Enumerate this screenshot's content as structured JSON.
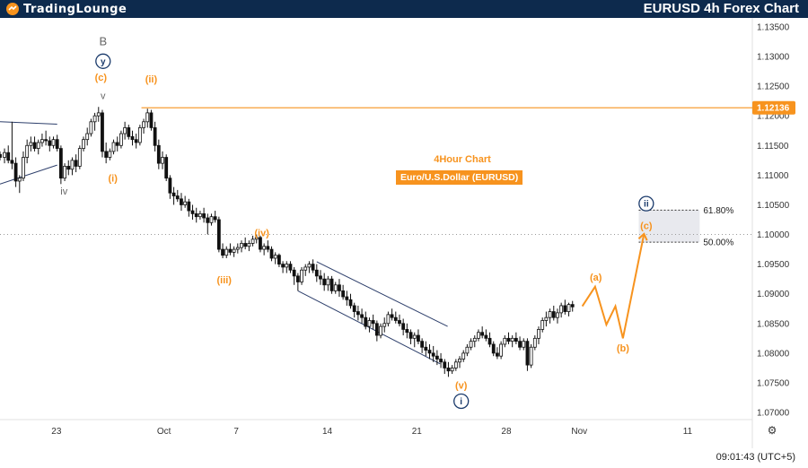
{
  "header": {
    "logo_text": "TradingLounge",
    "title": "EURUSD 4h Forex Chart"
  },
  "info": {
    "chart_label": "4Hour Chart",
    "instrument_label": "Euro/U.S.Dollar (EURUSD)"
  },
  "time_readout": "09:01:43 (UTC+5)",
  "chart_data": {
    "type": "candlestick",
    "title": "EURUSD 4h Forex Chart",
    "y_ticks": [
      1.07,
      1.075,
      1.08,
      1.085,
      1.09,
      1.095,
      1.1,
      1.105,
      1.11,
      1.115,
      1.12,
      1.125,
      1.13,
      1.135
    ],
    "y_tick_labels": [
      "1.07000",
      "1.07500",
      "1.08000",
      "1.08500",
      "1.09000",
      "1.09500",
      "1.10000",
      "1.10500",
      "1.11000",
      "1.11500",
      "1.12000",
      "1.12500",
      "1.13000",
      "1.13500"
    ],
    "ylim": [
      1.0688,
      1.1365
    ],
    "x_labels": [
      "23",
      "Oct",
      "7",
      "14",
      "21",
      "28",
      "Nov",
      "11"
    ],
    "current_price": "1.12136",
    "current_price_value": 1.12136,
    "dotted_level": 1.1,
    "fib_levels": [
      {
        "label": "61.80%",
        "value": 1.1041
      },
      {
        "label": "50.00%",
        "value": 1.0987
      }
    ],
    "wave_labels": [
      {
        "text": "B",
        "style": "gray",
        "x": 13.7,
        "y": 1.1325
      },
      {
        "text": "y",
        "style": "navy-circle",
        "x": 13.7,
        "y": 1.1292
      },
      {
        "text": "v",
        "style": "gray",
        "x": 13.7,
        "y": 1.1234
      },
      {
        "text": "(c)",
        "style": "orange",
        "x": 13.4,
        "y": 1.1265
      },
      {
        "text": "(ii)",
        "style": "orange",
        "x": 20.1,
        "y": 1.1262
      },
      {
        "text": "(i)",
        "style": "orange",
        "x": 15.0,
        "y": 1.1095
      },
      {
        "text": "iv",
        "style": "gray",
        "x": 8.5,
        "y": 1.1073
      },
      {
        "text": "(iii)",
        "style": "orange",
        "x": 29.8,
        "y": 1.0924
      },
      {
        "text": "(iv)",
        "style": "orange",
        "x": 34.8,
        "y": 1.1003
      },
      {
        "text": "(v)",
        "style": "orange",
        "x": 61.3,
        "y": 1.0746
      },
      {
        "text": "i",
        "style": "navy-circle",
        "x": 61.3,
        "y": 1.0719
      },
      {
        "text": "(a)",
        "style": "orange",
        "x": 79.2,
        "y": 1.0928
      },
      {
        "text": "(b)",
        "style": "orange",
        "x": 82.8,
        "y": 1.0809
      },
      {
        "text": "(c)",
        "style": "orange",
        "x": 85.9,
        "y": 1.1015
      },
      {
        "text": "ii",
        "style": "navy-circle",
        "x": 85.9,
        "y": 1.1052
      }
    ],
    "projection_path": [
      [
        77.4,
        1.0879
      ],
      [
        79.1,
        1.0912
      ],
      [
        80.6,
        1.0848
      ],
      [
        81.8,
        1.0879
      ],
      [
        82.8,
        1.0825
      ],
      [
        85.6,
        1.1001
      ]
    ],
    "channels": [
      {
        "from": [
          42.1,
          1.0954
        ],
        "to": [
          59.5,
          1.0845
        ]
      },
      {
        "from": [
          39.6,
          1.0905
        ],
        "to": [
          58.5,
          1.0782
        ]
      },
      {
        "from": [
          0.0,
          1.1085
        ],
        "to": [
          7.6,
          1.1117
        ]
      },
      {
        "from": [
          0.0,
          1.119
        ],
        "to": [
          7.6,
          1.1186
        ]
      }
    ],
    "x_label_positions": [
      7.5,
      21.8,
      31.4,
      43.5,
      55.4,
      67.3,
      77.0,
      91.4
    ],
    "candles": [
      [
        0.0,
        1.1135,
        1.114,
        1.1125,
        1.113
      ],
      [
        0.6,
        1.113,
        1.1145,
        1.112,
        1.1138
      ],
      [
        1.1,
        1.1138,
        1.115,
        1.112,
        1.1125
      ],
      [
        1.6,
        1.1125,
        1.119,
        1.111,
        1.112
      ],
      [
        2.1,
        1.112,
        1.113,
        1.108,
        1.109
      ],
      [
        2.6,
        1.109,
        1.11,
        1.107,
        1.1095
      ],
      [
        3.1,
        1.1095,
        1.114,
        1.109,
        1.113
      ],
      [
        3.6,
        1.113,
        1.116,
        1.112,
        1.115
      ],
      [
        4.1,
        1.115,
        1.1165,
        1.114,
        1.1155
      ],
      [
        4.6,
        1.1155,
        1.1165,
        1.114,
        1.1145
      ],
      [
        5.1,
        1.1145,
        1.116,
        1.1135,
        1.1155
      ],
      [
        5.6,
        1.1155,
        1.117,
        1.1148,
        1.116
      ],
      [
        6.1,
        1.116,
        1.1175,
        1.115,
        1.1158
      ],
      [
        6.6,
        1.1158,
        1.1165,
        1.114,
        1.115
      ],
      [
        7.1,
        1.115,
        1.1165,
        1.1145,
        1.116
      ],
      [
        7.6,
        1.116,
        1.1168,
        1.114,
        1.1145
      ],
      [
        8.1,
        1.1145,
        1.115,
        1.1085,
        1.1095
      ],
      [
        8.6,
        1.1095,
        1.112,
        1.109,
        1.1115
      ],
      [
        9.1,
        1.1115,
        1.1125,
        1.11,
        1.111
      ],
      [
        9.6,
        1.111,
        1.113,
        1.11,
        1.1125
      ],
      [
        10.1,
        1.1125,
        1.1135,
        1.1105,
        1.1115
      ],
      [
        10.6,
        1.1115,
        1.115,
        1.111,
        1.1145
      ],
      [
        11.1,
        1.1145,
        1.1165,
        1.114,
        1.116
      ],
      [
        11.6,
        1.116,
        1.118,
        1.115,
        1.117
      ],
      [
        12.1,
        1.117,
        1.1195,
        1.1165,
        1.119
      ],
      [
        12.6,
        1.119,
        1.1205,
        1.1175,
        1.12
      ],
      [
        13.1,
        1.12,
        1.1215,
        1.119,
        1.1205
      ],
      [
        13.6,
        1.1205,
        1.121,
        1.113,
        1.114
      ],
      [
        14.1,
        1.114,
        1.1155,
        1.112,
        1.113
      ],
      [
        14.6,
        1.113,
        1.1145,
        1.1125,
        1.114
      ],
      [
        15.1,
        1.114,
        1.116,
        1.1135,
        1.1155
      ],
      [
        15.6,
        1.1155,
        1.1165,
        1.114,
        1.115
      ],
      [
        16.1,
        1.115,
        1.1175,
        1.1145,
        1.117
      ],
      [
        16.6,
        1.117,
        1.119,
        1.116,
        1.118
      ],
      [
        17.1,
        1.118,
        1.1185,
        1.116,
        1.1165
      ],
      [
        17.6,
        1.1165,
        1.1175,
        1.115,
        1.116
      ],
      [
        18.1,
        1.116,
        1.117,
        1.1145,
        1.1155
      ],
      [
        18.6,
        1.1155,
        1.1185,
        1.115,
        1.118
      ],
      [
        19.1,
        1.118,
        1.1195,
        1.117,
        1.119
      ],
      [
        19.6,
        1.119,
        1.1212,
        1.118,
        1.1205
      ],
      [
        20.1,
        1.1205,
        1.121,
        1.1175,
        1.118
      ],
      [
        20.6,
        1.118,
        1.119,
        1.114,
        1.115
      ],
      [
        21.1,
        1.115,
        1.116,
        1.111,
        1.112
      ],
      [
        21.6,
        1.112,
        1.114,
        1.111,
        1.113
      ],
      [
        22.1,
        1.113,
        1.1135,
        1.109,
        1.1095
      ],
      [
        22.6,
        1.1095,
        1.11,
        1.106,
        1.107
      ],
      [
        23.1,
        1.107,
        1.108,
        1.105,
        1.1065
      ],
      [
        23.6,
        1.1065,
        1.1075,
        1.1055,
        1.106
      ],
      [
        24.1,
        1.106,
        1.107,
        1.104,
        1.105
      ],
      [
        24.6,
        1.105,
        1.1065,
        1.1045,
        1.1055
      ],
      [
        25.1,
        1.1055,
        1.106,
        1.103,
        1.104
      ],
      [
        25.6,
        1.104,
        1.105,
        1.1025,
        1.1035
      ],
      [
        26.1,
        1.1035,
        1.1045,
        1.102,
        1.103
      ],
      [
        26.6,
        1.103,
        1.104,
        1.1025,
        1.1035
      ],
      [
        27.1,
        1.1035,
        1.1045,
        1.102,
        1.1028
      ],
      [
        27.6,
        1.1028,
        1.1035,
        1.1,
        1.102
      ],
      [
        28.1,
        1.102,
        1.1035,
        1.1015,
        1.103
      ],
      [
        28.6,
        1.103,
        1.104,
        1.102,
        1.1025
      ],
      [
        29.1,
        1.1025,
        1.103,
        1.097,
        1.0975
      ],
      [
        29.6,
        1.0975,
        1.0985,
        1.096,
        1.0965
      ],
      [
        30.1,
        1.0965,
        1.098,
        1.096,
        1.0975
      ],
      [
        30.6,
        1.0975,
        1.0985,
        1.0965,
        1.097
      ],
      [
        31.1,
        1.097,
        1.098,
        1.0962,
        1.0975
      ],
      [
        31.6,
        1.0975,
        1.0985,
        1.0968,
        1.0978
      ],
      [
        32.1,
        1.0978,
        1.099,
        1.097,
        1.0985
      ],
      [
        32.6,
        1.0985,
        1.0995,
        1.0975,
        1.098
      ],
      [
        33.1,
        1.098,
        1.099,
        1.0972,
        1.0985
      ],
      [
        33.6,
        1.0985,
        1.0998,
        1.098,
        1.0992
      ],
      [
        34.1,
        1.0992,
        1.1,
        1.0985,
        1.0995
      ],
      [
        34.6,
        1.0995,
        1.0998,
        1.097,
        1.0975
      ],
      [
        35.1,
        1.0975,
        1.0985,
        1.0965,
        1.098
      ],
      [
        35.6,
        1.098,
        1.099,
        1.097,
        1.0975
      ],
      [
        36.1,
        1.0975,
        1.098,
        1.0955,
        1.096
      ],
      [
        36.6,
        1.096,
        1.097,
        1.095,
        1.0965
      ],
      [
        37.1,
        1.0965,
        1.0968,
        1.0945,
        1.095
      ],
      [
        37.6,
        1.095,
        1.0955,
        1.0935,
        1.0945
      ],
      [
        38.1,
        1.0945,
        1.0955,
        1.0935,
        1.095
      ],
      [
        38.6,
        1.095,
        1.0955,
        1.0935,
        1.094
      ],
      [
        39.1,
        1.094,
        1.0945,
        1.0915,
        1.093
      ],
      [
        39.6,
        1.093,
        1.0935,
        1.0905,
        1.092
      ],
      [
        40.1,
        1.092,
        1.0945,
        1.0915,
        1.094
      ],
      [
        40.6,
        1.094,
        1.095,
        1.093,
        1.0945
      ],
      [
        41.1,
        1.0945,
        1.0955,
        1.0935,
        1.095
      ],
      [
        41.6,
        1.095,
        1.0958,
        1.0935,
        1.094
      ],
      [
        42.1,
        1.094,
        1.095,
        1.092,
        1.093
      ],
      [
        42.6,
        1.093,
        1.094,
        1.0915,
        1.0925
      ],
      [
        43.1,
        1.0925,
        1.0935,
        1.0905,
        1.0915
      ],
      [
        43.6,
        1.0915,
        1.093,
        1.0905,
        1.0925
      ],
      [
        44.1,
        1.0925,
        1.093,
        1.09,
        1.0905
      ],
      [
        44.6,
        1.0905,
        1.092,
        1.09,
        1.0915
      ],
      [
        45.1,
        1.0915,
        1.0925,
        1.0895,
        1.0905
      ],
      [
        45.6,
        1.0905,
        1.0915,
        1.089,
        1.0895
      ],
      [
        46.1,
        1.0895,
        1.0905,
        1.088,
        1.089
      ],
      [
        46.6,
        1.089,
        1.09,
        1.0875,
        1.088
      ],
      [
        47.1,
        1.088,
        1.0885,
        1.086,
        1.087
      ],
      [
        47.6,
        1.087,
        1.088,
        1.0855,
        1.0865
      ],
      [
        48.1,
        1.0865,
        1.0875,
        1.085,
        1.086
      ],
      [
        48.6,
        1.086,
        1.087,
        1.084,
        1.0845
      ],
      [
        49.1,
        1.0845,
        1.086,
        1.0835,
        1.0855
      ],
      [
        49.6,
        1.0855,
        1.0865,
        1.084,
        1.085
      ],
      [
        50.1,
        1.085,
        1.0855,
        1.082,
        1.083
      ],
      [
        50.6,
        1.083,
        1.085,
        1.0825,
        1.0845
      ],
      [
        51.1,
        1.0845,
        1.086,
        1.0835,
        1.085
      ],
      [
        51.6,
        1.085,
        1.087,
        1.0845,
        1.0865
      ],
      [
        52.1,
        1.0865,
        1.0875,
        1.0855,
        1.086
      ],
      [
        52.6,
        1.086,
        1.087,
        1.085,
        1.0855
      ],
      [
        53.1,
        1.0855,
        1.0865,
        1.0845,
        1.085
      ],
      [
        53.6,
        1.085,
        1.0858,
        1.083,
        1.084
      ],
      [
        54.1,
        1.084,
        1.085,
        1.0825,
        1.0835
      ],
      [
        54.6,
        1.0835,
        1.084,
        1.0815,
        1.0825
      ],
      [
        55.1,
        1.0825,
        1.0835,
        1.081,
        1.083
      ],
      [
        55.6,
        1.083,
        1.084,
        1.0815,
        1.082
      ],
      [
        56.1,
        1.082,
        1.0825,
        1.08,
        1.081
      ],
      [
        56.6,
        1.081,
        1.082,
        1.0795,
        1.0805
      ],
      [
        57.1,
        1.0805,
        1.0815,
        1.079,
        1.08
      ],
      [
        57.6,
        1.08,
        1.0812,
        1.0785,
        1.0795
      ],
      [
        58.1,
        1.0795,
        1.0805,
        1.078,
        1.079
      ],
      [
        58.6,
        1.079,
        1.08,
        1.0775,
        1.0785
      ],
      [
        59.1,
        1.0785,
        1.079,
        1.0765,
        1.0775
      ],
      [
        59.6,
        1.0775,
        1.0785,
        1.076,
        1.077
      ],
      [
        60.1,
        1.077,
        1.078,
        1.0765,
        1.0775
      ],
      [
        60.6,
        1.0775,
        1.079,
        1.077,
        1.0785
      ],
      [
        61.1,
        1.0785,
        1.0795,
        1.0775,
        1.079
      ],
      [
        61.6,
        1.079,
        1.0805,
        1.0785,
        1.08
      ],
      [
        62.1,
        1.08,
        1.0815,
        1.0795,
        1.081
      ],
      [
        62.6,
        1.081,
        1.0825,
        1.0805,
        1.082
      ],
      [
        63.1,
        1.082,
        1.083,
        1.081,
        1.0825
      ],
      [
        63.6,
        1.0825,
        1.084,
        1.082,
        1.0835
      ],
      [
        64.1,
        1.0835,
        1.0845,
        1.0825,
        1.083
      ],
      [
        64.6,
        1.083,
        1.084,
        1.082,
        1.0825
      ],
      [
        65.1,
        1.0825,
        1.0835,
        1.081,
        1.0815
      ],
      [
        65.6,
        1.0815,
        1.082,
        1.0795,
        1.08
      ],
      [
        66.1,
        1.08,
        1.081,
        1.079,
        1.0795
      ],
      [
        66.6,
        1.0795,
        1.082,
        1.079,
        1.0815
      ],
      [
        67.1,
        1.0815,
        1.083,
        1.081,
        1.0825
      ],
      [
        67.6,
        1.0825,
        1.0835,
        1.0815,
        1.082
      ],
      [
        68.1,
        1.082,
        1.083,
        1.081,
        1.0825
      ],
      [
        68.6,
        1.0825,
        1.0835,
        1.0815,
        1.082
      ],
      [
        69.1,
        1.082,
        1.0828,
        1.0805,
        1.081
      ],
      [
        69.6,
        1.081,
        1.0825,
        1.0805,
        1.082
      ],
      [
        70.1,
        1.082,
        1.0825,
        1.077,
        1.078
      ],
      [
        70.6,
        1.078,
        1.0815,
        1.0775,
        1.081
      ],
      [
        71.1,
        1.081,
        1.083,
        1.0805,
        1.0825
      ],
      [
        71.6,
        1.0825,
        1.0845,
        1.0815,
        1.084
      ],
      [
        72.1,
        1.084,
        1.086,
        1.0835,
        1.0855
      ],
      [
        72.6,
        1.0855,
        1.087,
        1.0845,
        1.086
      ],
      [
        73.1,
        1.086,
        1.0875,
        1.085,
        1.087
      ],
      [
        73.6,
        1.087,
        1.088,
        1.0855,
        1.086
      ],
      [
        74.1,
        1.086,
        1.0875,
        1.085,
        1.0868
      ],
      [
        74.6,
        1.0868,
        1.0885,
        1.086,
        1.088
      ],
      [
        75.1,
        1.088,
        1.089,
        1.0865,
        1.087
      ],
      [
        75.6,
        1.087,
        1.0885,
        1.0862,
        1.0882
      ],
      [
        76.1,
        1.0882,
        1.0888,
        1.087,
        1.0878
      ]
    ]
  }
}
